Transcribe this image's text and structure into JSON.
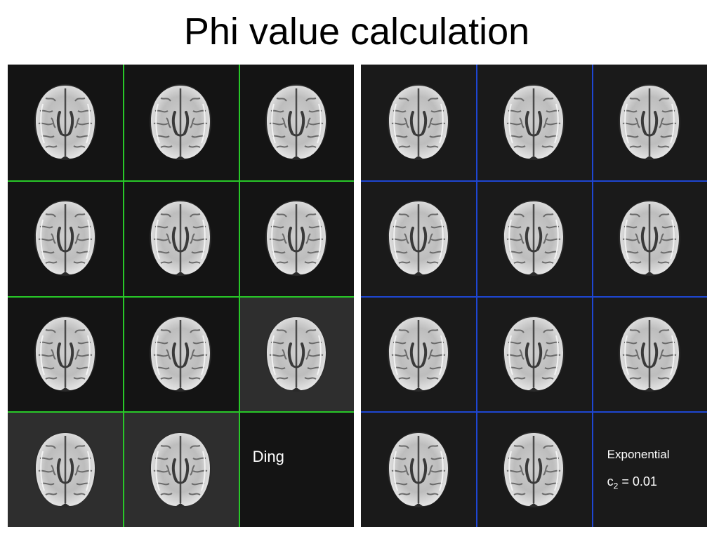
{
  "title": "Phi value calculation",
  "left_panel": {
    "grid_color": "#28c828",
    "label": "Ding",
    "image_count": 11
  },
  "right_panel": {
    "grid_color": "#1e46d2",
    "label_method": "Exponential",
    "param_symbol": "c",
    "param_subscript": "2",
    "param_value": "= 0.01",
    "image_count": 11
  },
  "icons": {
    "brain_slice": "axial-brain-mri-slice-icon"
  }
}
